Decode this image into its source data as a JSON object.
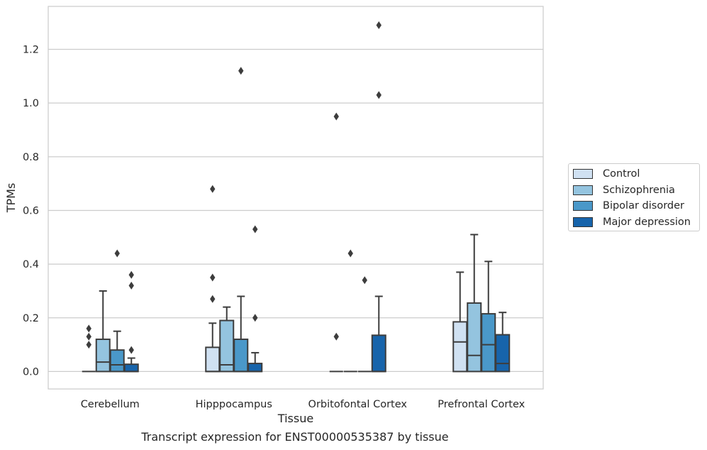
{
  "chart_data": {
    "type": "box",
    "title": "",
    "xlabel": "Tissue",
    "ylabel": "TPMs",
    "ylim": [
      -0.065,
      1.36
    ],
    "yticks": [
      "0.0",
      "0.2",
      "0.4",
      "0.6",
      "0.8",
      "1.0",
      "1.2"
    ],
    "grid": true,
    "legend_position": "right",
    "categories": [
      "Cerebellum",
      "Hipppocampus",
      "Orbitofontal Cortex",
      "Prefrontal Cortex"
    ],
    "series": [
      {
        "name": "Control",
        "color": "#d0e1f2",
        "boxes": [
          {
            "q1": 0,
            "median": 0,
            "q3": 0,
            "whisker_low": 0,
            "whisker_high": 0,
            "outliers": [
              0.16,
              0.13,
              0.1
            ]
          },
          {
            "q1": 0,
            "median": 0,
            "q3": 0.09,
            "whisker_low": 0,
            "whisker_high": 0.18,
            "outliers": [
              0.68,
              0.35,
              0.27
            ]
          },
          {
            "q1": 0,
            "median": 0,
            "q3": 0,
            "whisker_low": 0,
            "whisker_high": 0,
            "outliers": [
              0.95,
              0.13
            ]
          },
          {
            "q1": 0,
            "median": 0.11,
            "q3": 0.185,
            "whisker_low": 0,
            "whisker_high": 0.37,
            "outliers": []
          }
        ]
      },
      {
        "name": "Schizophrenia",
        "color": "#94c4df",
        "boxes": [
          {
            "q1": 0,
            "median": 0.035,
            "q3": 0.12,
            "whisker_low": 0,
            "whisker_high": 0.3,
            "outliers": []
          },
          {
            "q1": 0,
            "median": 0.025,
            "q3": 0.19,
            "whisker_low": 0,
            "whisker_high": 0.24,
            "outliers": []
          },
          {
            "q1": 0,
            "median": 0,
            "q3": 0,
            "whisker_low": 0,
            "whisker_high": 0,
            "outliers": [
              0.44
            ]
          },
          {
            "q1": 0,
            "median": 0.06,
            "q3": 0.255,
            "whisker_low": 0,
            "whisker_high": 0.51,
            "outliers": []
          }
        ]
      },
      {
        "name": "Bipolar disorder",
        "color": "#4a98c9",
        "boxes": [
          {
            "q1": 0,
            "median": 0.025,
            "q3": 0.08,
            "whisker_low": 0,
            "whisker_high": 0.15,
            "outliers": [
              0.44
            ]
          },
          {
            "q1": 0,
            "median": 0,
            "q3": 0.12,
            "whisker_low": 0,
            "whisker_high": 0.28,
            "outliers": [
              1.12
            ]
          },
          {
            "q1": 0,
            "median": 0,
            "q3": 0,
            "whisker_low": 0,
            "whisker_high": 0,
            "outliers": [
              0.34
            ]
          },
          {
            "q1": 0,
            "median": 0.1,
            "q3": 0.215,
            "whisker_low": 0,
            "whisker_high": 0.41,
            "outliers": []
          }
        ]
      },
      {
        "name": "Major depression",
        "color": "#1764ab",
        "boxes": [
          {
            "q1": 0,
            "median": 0,
            "q3": 0.027,
            "whisker_low": 0,
            "whisker_high": 0.05,
            "outliers": [
              0.36,
              0.32,
              0.08
            ]
          },
          {
            "q1": 0,
            "median": 0,
            "q3": 0.03,
            "whisker_low": 0,
            "whisker_high": 0.07,
            "outliers": [
              0.53,
              0.2
            ]
          },
          {
            "q1": 0,
            "median": 0,
            "q3": 0.135,
            "whisker_low": 0,
            "whisker_high": 0.28,
            "outliers": [
              1.29,
              1.03
            ]
          },
          {
            "q1": 0,
            "median": 0.03,
            "q3": 0.137,
            "whisker_low": 0,
            "whisker_high": 0.22,
            "outliers": []
          }
        ]
      }
    ]
  },
  "caption": "Transcript expression for ENST00000535387 by tissue"
}
